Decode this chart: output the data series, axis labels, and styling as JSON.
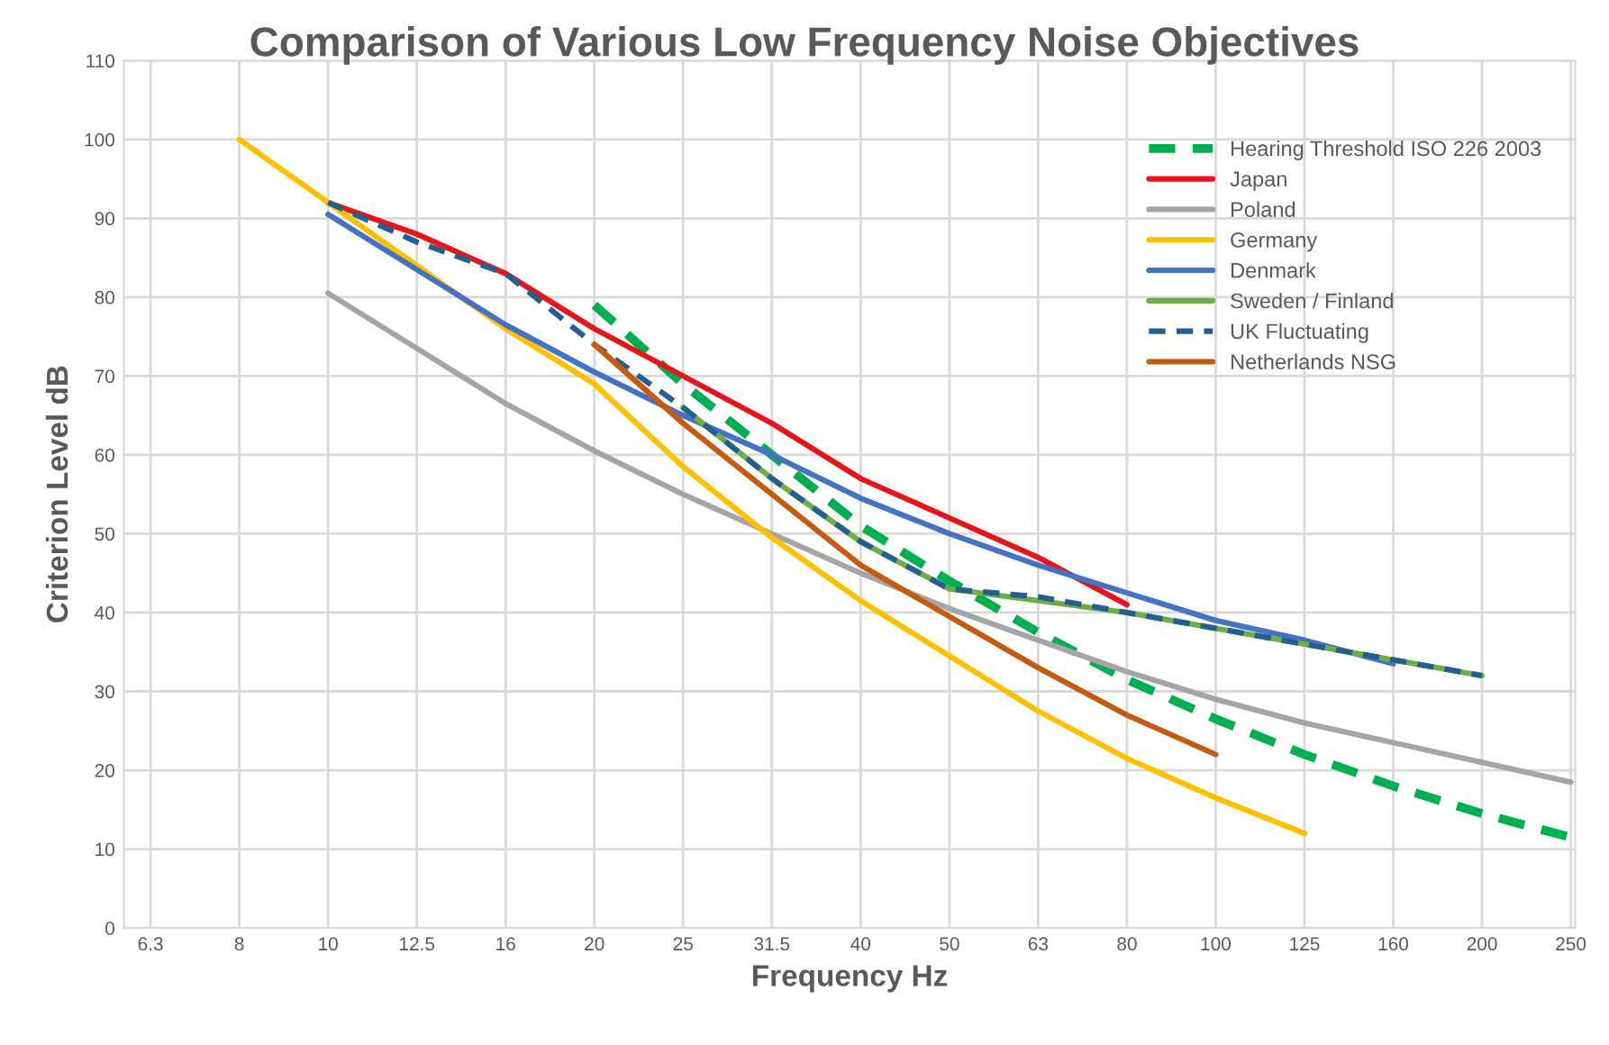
{
  "chart_data": {
    "type": "line",
    "title": "Comparison of Various Low Frequency Noise Objectives",
    "xlabel": "Frequency Hz",
    "ylabel": "Criterion Level dB",
    "categories": [
      "6.3",
      "8",
      "10",
      "12.5",
      "16",
      "20",
      "25",
      "31.5",
      "40",
      "50",
      "63",
      "80",
      "100",
      "125",
      "160",
      "200",
      "250"
    ],
    "ylim": [
      0,
      110
    ],
    "yticks": [
      0,
      10,
      20,
      30,
      40,
      50,
      60,
      70,
      80,
      90,
      100,
      110
    ],
    "grid": true,
    "legend": "top right",
    "marker": "none",
    "series": [
      {
        "name": "Hearing Threshold ISO 226 2003",
        "color": "#00b050",
        "line_style": "dashed",
        "values": [
          null,
          null,
          null,
          null,
          null,
          79,
          69,
          60,
          51,
          44,
          37.5,
          31.5,
          26.5,
          22,
          18,
          14.5,
          11.5
        ]
      },
      {
        "name": "Japan",
        "color": "#e8141b",
        "values": [
          null,
          null,
          92,
          88,
          83,
          76,
          70,
          64,
          57,
          52,
          47,
          41,
          null,
          null,
          null,
          null,
          null
        ]
      },
      {
        "name": "Poland",
        "color": "#a5a5a5",
        "values": [
          null,
          null,
          80.5,
          73.5,
          66.5,
          60.5,
          55,
          50,
          45,
          40.5,
          36.5,
          32.5,
          29,
          26,
          23.5,
          21,
          18.5
        ]
      },
      {
        "name": "Germany",
        "color": "#ffc000",
        "values": [
          null,
          100,
          92,
          84,
          76,
          69,
          58.5,
          49.5,
          41.5,
          34.5,
          27.5,
          21.5,
          16.5,
          12,
          null,
          null,
          null
        ]
      },
      {
        "name": "Denmark",
        "color": "#4472c4",
        "values": [
          null,
          null,
          90.5,
          83.5,
          76.5,
          70.5,
          65,
          60,
          54.5,
          50,
          46,
          42.5,
          39,
          36.5,
          33.5,
          null,
          null
        ]
      },
      {
        "name": "Sweden / Finland",
        "color": "#70ad47",
        "values": [
          null,
          null,
          null,
          null,
          null,
          null,
          66,
          57,
          49,
          43,
          41.5,
          40,
          38,
          36,
          34,
          32,
          null
        ]
      },
      {
        "name": "UK Fluctuating",
        "color": "#255e91",
        "line_style": "dashed",
        "values": [
          null,
          null,
          92,
          87,
          83,
          74,
          66,
          57,
          49,
          43,
          42,
          40,
          38,
          36,
          34,
          32,
          null
        ]
      },
      {
        "name": "Netherlands NSG",
        "color": "#c55a11",
        "values": [
          null,
          null,
          null,
          null,
          null,
          74,
          64,
          55,
          46,
          39.5,
          33,
          27,
          22,
          null,
          null,
          null,
          null
        ]
      }
    ]
  }
}
